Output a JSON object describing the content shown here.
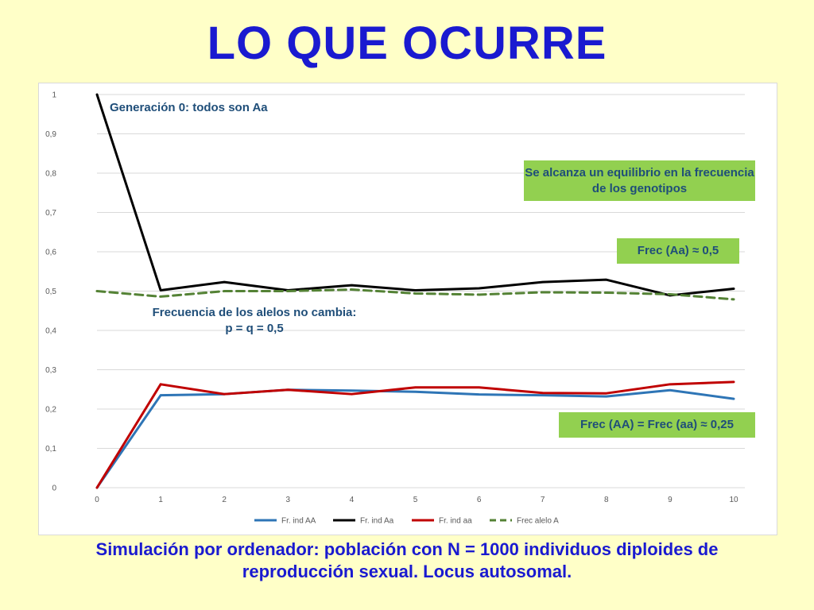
{
  "title": "LO QUE OCURRE",
  "caption": "Simulación por ordenador: población con N = 1000 individuos diploides de reproducción sexual. Locus autosomal.",
  "annotations": {
    "gen0": "Generación 0: todos son Aa",
    "equilibrium": "Se alcanza un equilibrio en la frecuencia de los genotipos",
    "frec_aa_het": "Frec (Aa) ≈ 0,5",
    "alleles": "Frecuencia de los alelos no cambia: p = q = 0,5",
    "frec_homo": "Frec (AA) = Frec (aa) ≈ 0,25"
  },
  "colors": {
    "title": "#1a1ad0",
    "note_text": "#1f4e79",
    "note_box": "#92d050",
    "background": "#ffffc8"
  },
  "chart_data": {
    "type": "line",
    "x": [
      0,
      1,
      2,
      3,
      4,
      5,
      6,
      7,
      8,
      9,
      10
    ],
    "ylim": [
      0,
      1
    ],
    "yticks": [
      "0",
      "0,1",
      "0,2",
      "0,3",
      "0,4",
      "0,5",
      "0,6",
      "0,7",
      "0,8",
      "0,9",
      "1"
    ],
    "xticks": [
      "0",
      "1",
      "2",
      "3",
      "4",
      "5",
      "6",
      "7",
      "8",
      "9",
      "10"
    ],
    "grid": true,
    "legend_position": "bottom",
    "series": [
      {
        "name": "Fr. ind AA",
        "color": "#2e75b6",
        "style": "solid",
        "values": [
          0,
          0.235,
          0.238,
          0.249,
          0.247,
          0.244,
          0.237,
          0.235,
          0.232,
          0.248,
          0.226
        ]
      },
      {
        "name": "Fr. ind Aa",
        "color": "#000000",
        "style": "solid",
        "values": [
          1,
          0.502,
          0.523,
          0.502,
          0.515,
          0.502,
          0.507,
          0.523,
          0.529,
          0.489,
          0.506
        ]
      },
      {
        "name": "Fr. ind aa",
        "color": "#c00000",
        "style": "solid",
        "values": [
          0,
          0.263,
          0.238,
          0.249,
          0.238,
          0.255,
          0.255,
          0.241,
          0.24,
          0.263,
          0.269
        ]
      },
      {
        "name": "Frec alelo A",
        "color": "#548235",
        "style": "dashed",
        "values": [
          0.5,
          0.486,
          0.5,
          0.5,
          0.504,
          0.494,
          0.491,
          0.497,
          0.496,
          0.492,
          0.479
        ]
      }
    ]
  }
}
